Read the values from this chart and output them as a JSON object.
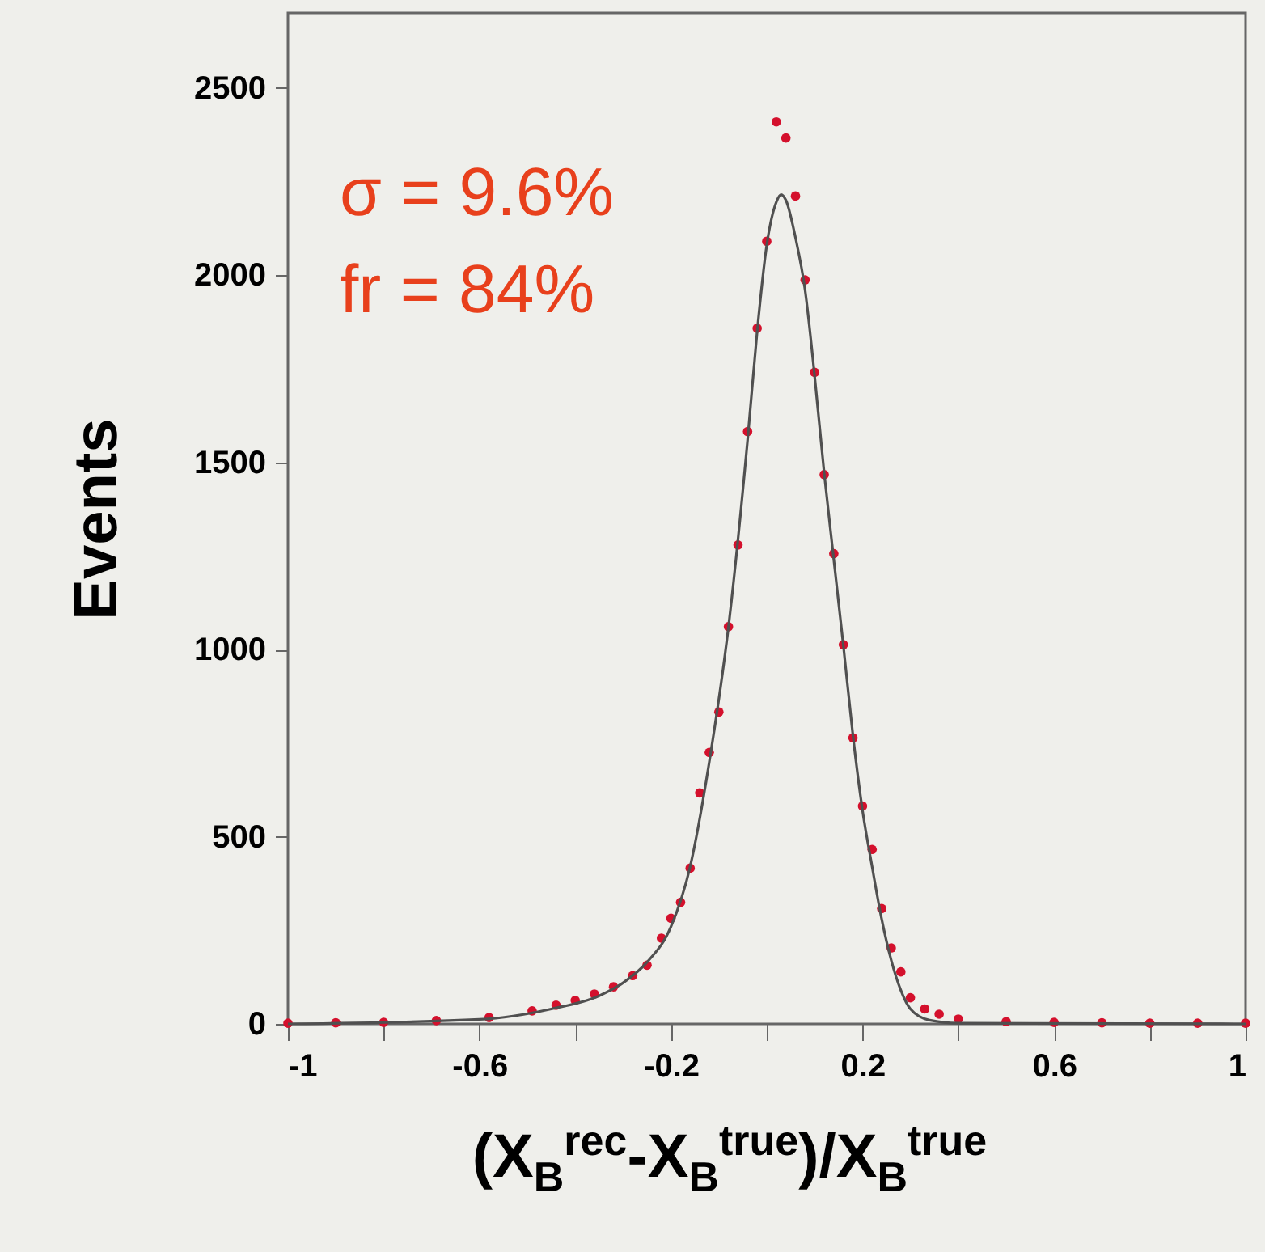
{
  "chart_data": {
    "type": "scatter",
    "xlabel": "(X$_{B}$$^{rec}$-X$_{B}$$^{true}$)/X$_{B}$$^{true}$",
    "ylabel": "Events",
    "annotations": [
      "σ = 9.6%",
      "fr = 84%"
    ],
    "xlim": [
      -1,
      1
    ],
    "xticks": [
      -1,
      {
        "value": -0.8,
        "label": null
      },
      -0.6,
      {
        "value": -0.4,
        "label": null
      },
      -0.2,
      {
        "value": 0,
        "label": null
      },
      0.2,
      {
        "value": 0.4,
        "label": null
      },
      0.6,
      {
        "value": 0.8,
        "label": null
      },
      1
    ],
    "ylim": [
      0,
      2700
    ],
    "yticks": [
      0,
      500,
      1000,
      1500,
      2000,
      2500
    ],
    "grid": false,
    "series": [
      {
        "marker": "circle",
        "color": "#d4102c",
        "x": [
          -1,
          -0.9,
          -0.8,
          -0.69,
          -0.58,
          -0.49,
          -0.44,
          -0.4,
          -0.36,
          -0.32,
          -0.28,
          -0.25,
          -0.22,
          -0.2,
          -0.18,
          -0.16,
          -0.14,
          -0.12,
          -0.1,
          -0.08,
          -0.06,
          -0.04,
          -0.02,
          0,
          0.02,
          0.04,
          0.06,
          0.08,
          0.1,
          0.12,
          0.14,
          0.16,
          0.18,
          0.2,
          0.22,
          0.24,
          0.26,
          0.28,
          0.3,
          0.33,
          0.36,
          0.4,
          0.5,
          0.6,
          0.7,
          0.8,
          0.9,
          1
        ],
        "values": [
          2,
          3,
          4,
          9,
          17,
          35,
          50,
          63,
          80,
          99,
          129,
          157,
          229,
          282,
          325,
          416,
          617,
          725,
          833,
          1061,
          1279,
          1582,
          1858,
          2090,
          2409,
          2366,
          2211,
          1987,
          1740,
          1467,
          1256,
          1013,
          764,
          582,
          466,
          308,
          203,
          139,
          70,
          40,
          26,
          13,
          6,
          4,
          3,
          2,
          2,
          2
        ]
      },
      {
        "type": "line",
        "marker": "none",
        "line_style": "solid",
        "color": "#505050",
        "x": [
          -1,
          -0.6,
          -0.45,
          -0.35,
          -0.3,
          -0.25,
          -0.2,
          -0.16,
          -0.12,
          -0.08,
          -0.04,
          -0.02,
          0,
          0.02,
          0.03,
          0.04,
          0.06,
          0.08,
          0.1,
          0.12,
          0.14,
          0.16,
          0.18,
          0.2,
          0.22,
          0.24,
          0.26,
          0.28,
          0.3,
          0.34,
          0.4,
          1
        ],
        "values": [
          0,
          12,
          40,
          75,
          110,
          165,
          260,
          420,
          700,
          1060,
          1560,
          1850,
          2080,
          2195,
          2215,
          2200,
          2100,
          1960,
          1730,
          1470,
          1240,
          1010,
          770,
          570,
          420,
          280,
          170,
          90,
          40,
          10,
          2,
          0
        ]
      }
    ]
  }
}
